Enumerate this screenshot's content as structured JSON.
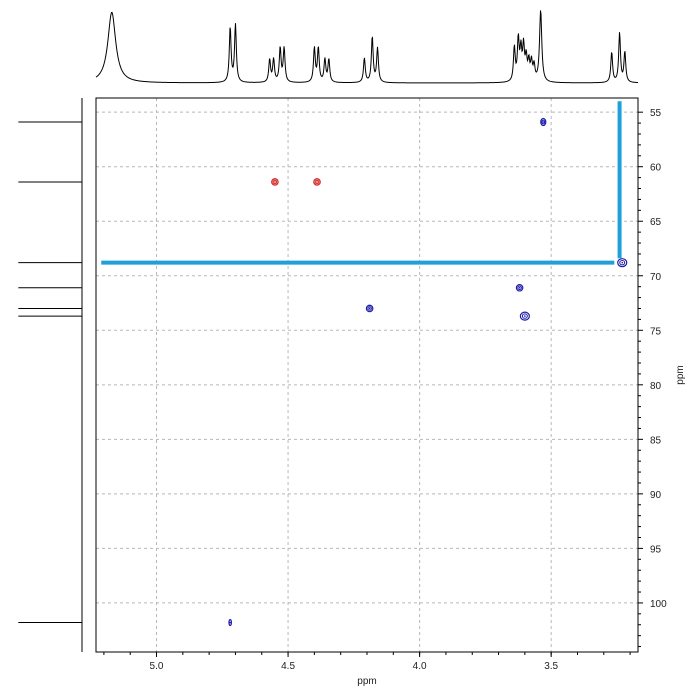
{
  "chart_data": {
    "type": "scatter",
    "title": "",
    "xlabel": "ppm",
    "ylabel": "ppm",
    "x_axis_reversed": true,
    "y_axis_reversed": true,
    "xlim": [
      5.23,
      3.17
    ],
    "ylim": [
      53.7,
      104.5
    ],
    "x_ticks": [
      5.0,
      4.5,
      4.0,
      3.5
    ],
    "x_tick_labels": [
      "5.0",
      "4.5",
      "4.0",
      "3.5"
    ],
    "y_ticks": [
      55,
      60,
      65,
      70,
      75,
      80,
      85,
      90,
      95,
      100
    ],
    "y_tick_labels": [
      "55",
      "60",
      "65",
      "70",
      "75",
      "80",
      "85",
      "90",
      "95",
      "100"
    ],
    "grid": true,
    "colors": {
      "positive_peak": "#1a1aa8",
      "negative_peak": "#d42020",
      "highlight": "#1fa0d8",
      "grid": "#b8b8b8",
      "spectrum": "#000000"
    },
    "peaks": [
      {
        "x": 3.53,
        "y": 55.9,
        "phase": "positive",
        "size": "small"
      },
      {
        "x": 4.55,
        "y": 61.4,
        "phase": "negative",
        "size": "medium"
      },
      {
        "x": 4.39,
        "y": 61.4,
        "phase": "negative",
        "size": "medium"
      },
      {
        "x": 3.23,
        "y": 68.8,
        "phase": "positive",
        "size": "large"
      },
      {
        "x": 3.62,
        "y": 71.1,
        "phase": "positive",
        "size": "medium"
      },
      {
        "x": 4.19,
        "y": 73.0,
        "phase": "positive",
        "size": "medium"
      },
      {
        "x": 3.6,
        "y": 73.7,
        "phase": "positive",
        "size": "large"
      },
      {
        "x": 4.72,
        "y": 101.8,
        "phase": "positive",
        "size": "tiny"
      }
    ],
    "highlight_lines": [
      {
        "orientation": "horizontal",
        "y": 68.8,
        "x_from": 5.21,
        "x_to": 3.26
      },
      {
        "orientation": "vertical",
        "x": 3.24,
        "y_from": 54.0,
        "y_to": 68.4
      }
    ],
    "projection_top": {
      "peaks": [
        {
          "x": 5.17,
          "h": 0.93,
          "w": 0.018
        },
        {
          "x": 4.72,
          "h": 0.72,
          "w": 0.004
        },
        {
          "x": 4.7,
          "h": 0.76,
          "w": 0.004
        },
        {
          "x": 4.57,
          "h": 0.3,
          "w": 0.004
        },
        {
          "x": 4.555,
          "h": 0.3,
          "w": 0.004
        },
        {
          "x": 4.53,
          "h": 0.45,
          "w": 0.004
        },
        {
          "x": 4.515,
          "h": 0.45,
          "w": 0.004
        },
        {
          "x": 4.4,
          "h": 0.45,
          "w": 0.004
        },
        {
          "x": 4.385,
          "h": 0.45,
          "w": 0.004
        },
        {
          "x": 4.36,
          "h": 0.3,
          "w": 0.004
        },
        {
          "x": 4.345,
          "h": 0.3,
          "w": 0.004
        },
        {
          "x": 4.21,
          "h": 0.32,
          "w": 0.004
        },
        {
          "x": 4.18,
          "h": 0.6,
          "w": 0.004
        },
        {
          "x": 4.16,
          "h": 0.45,
          "w": 0.004
        },
        {
          "x": 3.64,
          "h": 0.45,
          "w": 0.004
        },
        {
          "x": 3.625,
          "h": 0.55,
          "w": 0.004
        },
        {
          "x": 3.615,
          "h": 0.4,
          "w": 0.004
        },
        {
          "x": 3.605,
          "h": 0.45,
          "w": 0.004
        },
        {
          "x": 3.595,
          "h": 0.3,
          "w": 0.004
        },
        {
          "x": 3.585,
          "h": 0.25,
          "w": 0.004
        },
        {
          "x": 3.575,
          "h": 0.25,
          "w": 0.004
        },
        {
          "x": 3.565,
          "h": 0.2,
          "w": 0.004
        },
        {
          "x": 3.54,
          "h": 0.95,
          "w": 0.005
        },
        {
          "x": 3.27,
          "h": 0.4,
          "w": 0.004
        },
        {
          "x": 3.24,
          "h": 0.65,
          "w": 0.004
        },
        {
          "x": 3.22,
          "h": 0.4,
          "w": 0.004
        }
      ]
    },
    "projection_left": {
      "peaks": [
        {
          "y": 55.9,
          "h": 0.95
        },
        {
          "y": 61.4,
          "h": 0.95
        },
        {
          "y": 68.8,
          "h": 0.95
        },
        {
          "y": 71.1,
          "h": 0.95
        },
        {
          "y": 73.0,
          "h": 0.95
        },
        {
          "y": 73.7,
          "h": 0.95
        },
        {
          "y": 101.8,
          "h": 0.95
        }
      ]
    }
  }
}
